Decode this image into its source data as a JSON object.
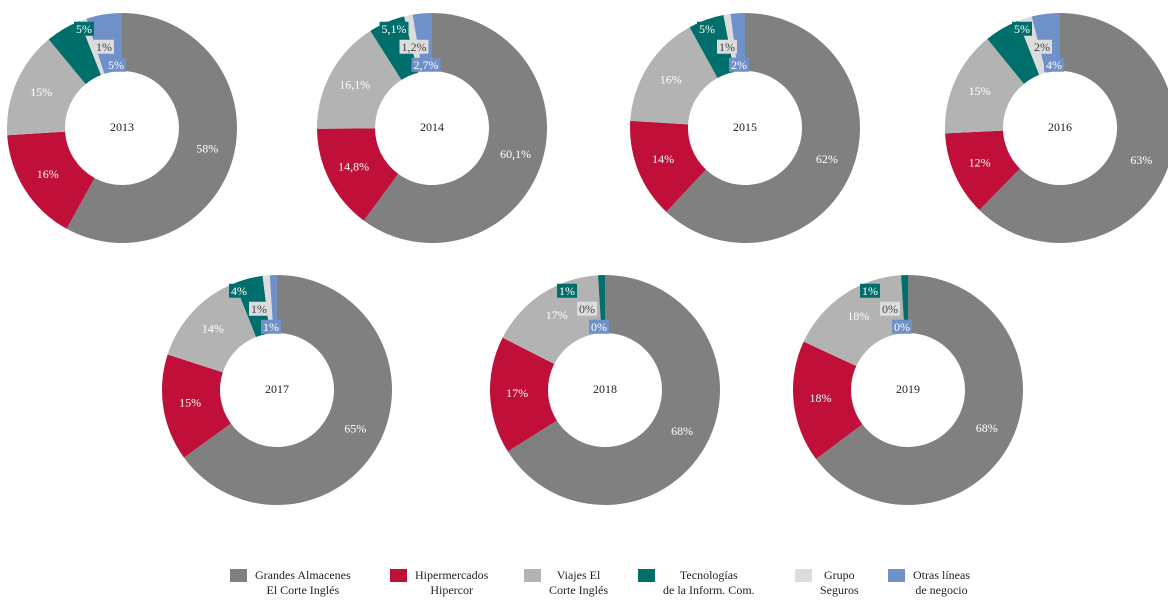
{
  "chart_data": [
    {
      "type": "donut",
      "title": "2013",
      "values": [
        58,
        16,
        15,
        5,
        1,
        5
      ],
      "value_labels": [
        "58%",
        "16%",
        "15%",
        "5%",
        "1%",
        "5%"
      ]
    },
    {
      "type": "donut",
      "title": "2014",
      "values": [
        60.1,
        14.8,
        16.1,
        5.1,
        1.2,
        2.7
      ],
      "value_labels": [
        "60,1%",
        "14,8%",
        "16,1%",
        "5,1%",
        "1,2%",
        "2,7%"
      ]
    },
    {
      "type": "donut",
      "title": "2015",
      "values": [
        62,
        14,
        16,
        5,
        1,
        2
      ],
      "value_labels": [
        "62%",
        "14%",
        "16%",
        "5%",
        "1%",
        "2%"
      ]
    },
    {
      "type": "donut",
      "title": "2016",
      "values": [
        63,
        12,
        15,
        5,
        2,
        4
      ],
      "value_labels": [
        "63%",
        "12%",
        "15%",
        "5%",
        "2%",
        "4%"
      ]
    },
    {
      "type": "donut",
      "title": "2017",
      "values": [
        65,
        15,
        14,
        4,
        1,
        1
      ],
      "value_labels": [
        "65%",
        "15%",
        "14%",
        "4%",
        "1%",
        "1%"
      ]
    },
    {
      "type": "donut",
      "title": "2018",
      "values": [
        68,
        17,
        17,
        1,
        0,
        0
      ],
      "value_labels": [
        "68%",
        "17%",
        "17%",
        "1%",
        "0%",
        "0%"
      ]
    },
    {
      "type": "donut",
      "title": "2019",
      "values": [
        68,
        18,
        18,
        1,
        0,
        0
      ],
      "value_labels": [
        "68%",
        "18%",
        "18%",
        "1%",
        "0%",
        "0%"
      ]
    }
  ],
  "legend": {
    "categories": [
      "Grandes Almacenes\nEl Corte Inglés",
      "Hipermercados\nHipercor",
      "Viajes El\nCorte Inglés",
      "Tecnologías\nde la Inform. Com.",
      "Grupo\nSeguros",
      "Otras líneas\nde negocio"
    ],
    "colors": [
      "#808080",
      "#c0103a",
      "#b3b3b3",
      "#006e6a",
      "#dcdcdc",
      "#7090c8"
    ]
  }
}
